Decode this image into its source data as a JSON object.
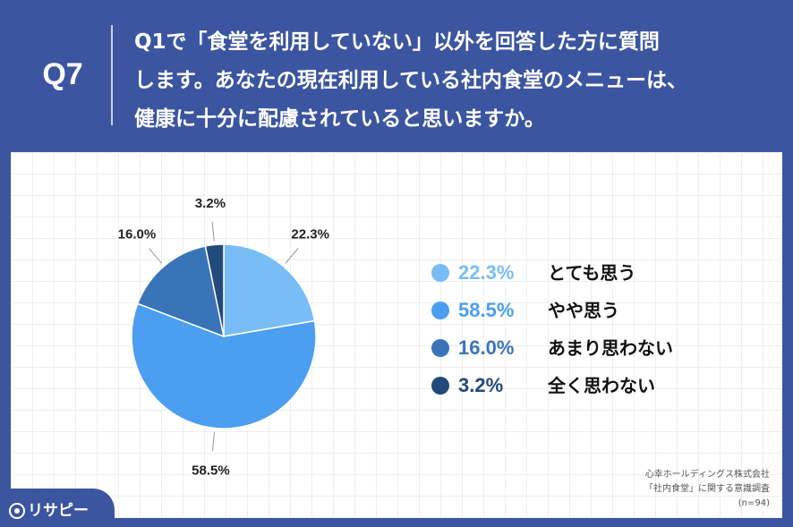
{
  "header": {
    "question_number": "Q7",
    "question_text": "Q1で「食堂を利用していない」以外を回答した方に質問\nします。あなたの現在利用している社内食堂のメニューは、\n健康に十分に配慮されていると思いますか。"
  },
  "chart_data": {
    "type": "pie",
    "labels": [
      "とても思う",
      "やや思う",
      "あまり思わない",
      "全く思わない"
    ],
    "values": [
      22.3,
      58.5,
      16.0,
      3.2
    ],
    "value_labels": [
      "22.3%",
      "58.5%",
      "16.0%",
      "3.2%"
    ],
    "colors": [
      "#79bdf6",
      "#4b9ef0",
      "#3a74b8",
      "#224a7a"
    ],
    "legend_position": "right",
    "start": "top, clockwise"
  },
  "legend": [
    {
      "pct": "22.3%",
      "label": "とても思う"
    },
    {
      "pct": "58.5%",
      "label": "やや思う"
    },
    {
      "pct": "16.0%",
      "label": "あまり思わない"
    },
    {
      "pct": "3.2%",
      "label": "全く思わない"
    }
  ],
  "source": {
    "line1": "心幸ホールディングス株式会社",
    "line2": "「社内食堂」に関する意識調査",
    "line3": "(n=94)"
  },
  "logo": {
    "text": "リサピー"
  }
}
